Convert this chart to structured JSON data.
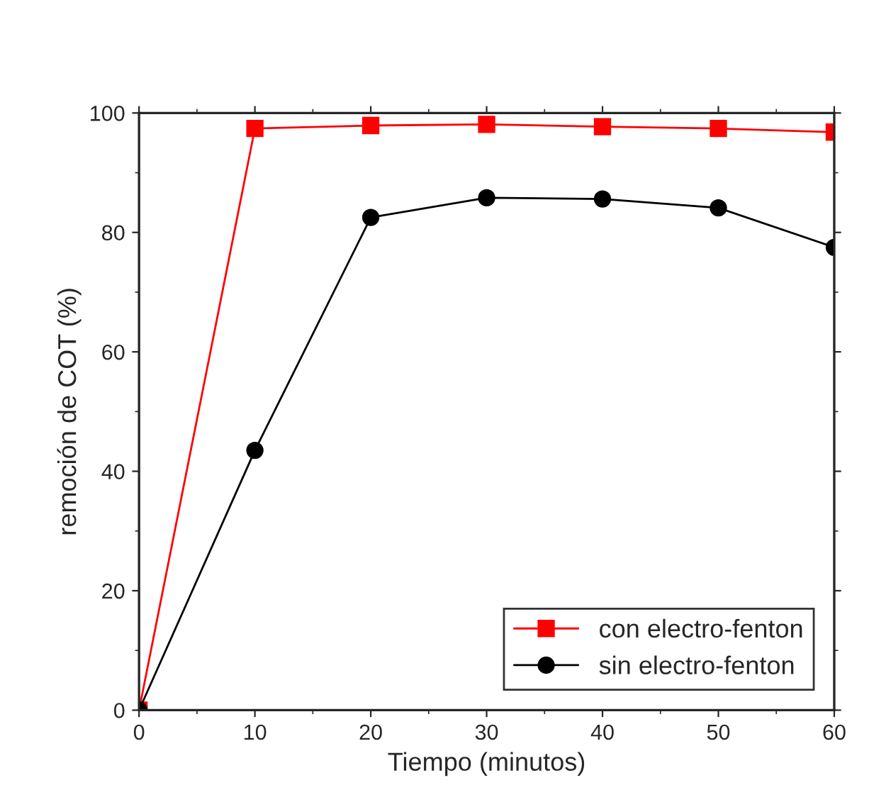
{
  "chart_data": {
    "type": "line",
    "xlabel": "Tiempo (minutos)",
    "ylabel": "remoción de COT (%)",
    "x": [
      0,
      10,
      20,
      30,
      40,
      50,
      60
    ],
    "series": [
      {
        "name": "con electro-fenton",
        "color": "#ff0000",
        "marker": "square",
        "values": [
          0,
          97.4,
          97.9,
          98.1,
          97.7,
          97.4,
          96.8
        ]
      },
      {
        "name": "sin electro-fenton",
        "color": "#000000",
        "marker": "circle",
        "values": [
          0,
          43.5,
          82.5,
          85.8,
          85.6,
          84.1,
          77.5
        ]
      }
    ],
    "xlim": [
      0,
      60
    ],
    "xticks": [
      0,
      10,
      20,
      30,
      40,
      50,
      60
    ],
    "ylim": [
      0,
      100
    ],
    "yticks": [
      0,
      20,
      40,
      60,
      80,
      100
    ],
    "grid": false,
    "legend": "bottom right",
    "line_style": "solid"
  }
}
